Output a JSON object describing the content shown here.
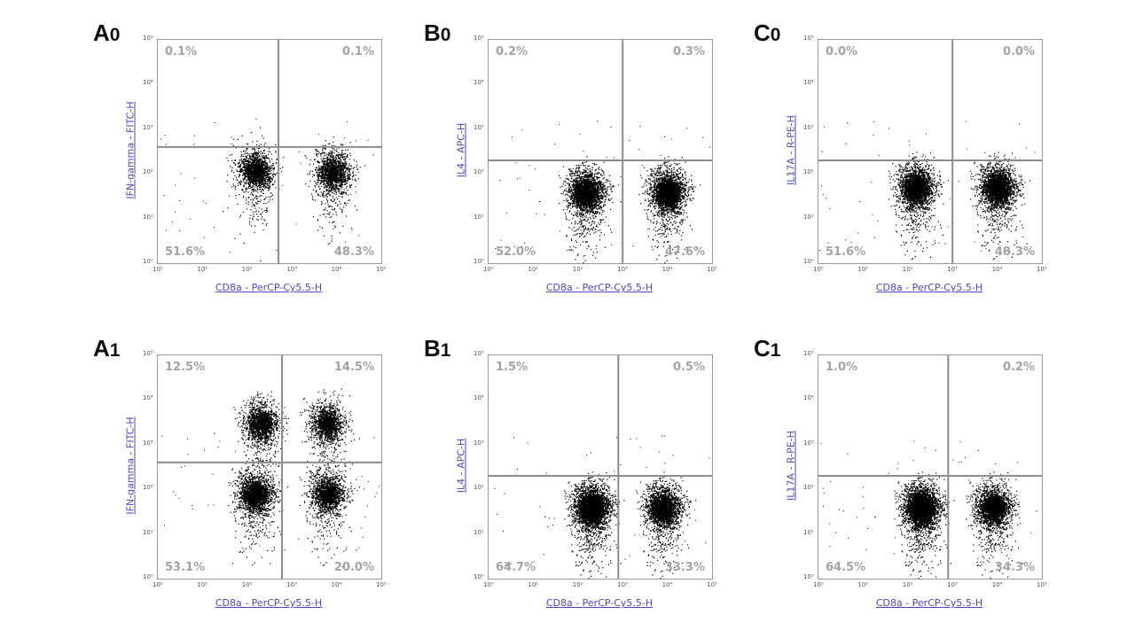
{
  "chart_data": [
    {
      "id": "A0",
      "label_main": "A",
      "label_sub": "0",
      "type": "scatter",
      "xlabel": "CD8a - PerCP-Cy5.5-H",
      "ylabel": "IFN-gamma - FITC-H",
      "quadrants": {
        "upper_left": "0.1%",
        "upper_right": "0.1%",
        "lower_left": "51.6%",
        "lower_right": "48.3%"
      },
      "xlim": [
        1,
        100000
      ],
      "ylim": [
        1,
        100000
      ],
      "scale": "log",
      "gate": {
        "x": 500,
        "y": 400
      },
      "populations": [
        {
          "x": 150,
          "y": 120,
          "n": 900
        },
        {
          "x": 8000,
          "y": 110,
          "n": 900
        }
      ]
    },
    {
      "id": "B0",
      "label_main": "B",
      "label_sub": "0",
      "type": "scatter",
      "xlabel": "CD8a - PerCP-Cy5.5-H",
      "ylabel": "IL4 - APC-H",
      "quadrants": {
        "upper_left": "0.2%",
        "upper_right": "0.3%",
        "lower_left": "52.0%",
        "lower_right": "47.6%"
      },
      "xlim": [
        1,
        100000
      ],
      "ylim": [
        1,
        100000
      ],
      "scale": "log",
      "gate": {
        "x": 1000,
        "y": 200
      },
      "populations": [
        {
          "x": 150,
          "y": 40,
          "n": 1500
        },
        {
          "x": 10000,
          "y": 40,
          "n": 1500
        }
      ]
    },
    {
      "id": "C0",
      "label_main": "C",
      "label_sub": "0",
      "type": "scatter",
      "xlabel": "CD8a - PerCP-Cy5.5-H",
      "ylabel": "IL17A - R-PE-H",
      "quadrants": {
        "upper_left": "0.0%",
        "upper_right": "0.0%",
        "lower_left": "51.6%",
        "lower_right": "48.3%"
      },
      "xlim": [
        1,
        100000
      ],
      "ylim": [
        1,
        100000
      ],
      "scale": "log",
      "gate": {
        "x": 1000,
        "y": 200
      },
      "populations": [
        {
          "x": 150,
          "y": 50,
          "n": 1500
        },
        {
          "x": 10000,
          "y": 50,
          "n": 1500
        }
      ]
    },
    {
      "id": "A1",
      "label_main": "A",
      "label_sub": "1",
      "type": "scatter",
      "xlabel": "CD8a - PerCP-Cy5.5-H",
      "ylabel": "IFN-gamma - FITC-H",
      "quadrants": {
        "upper_left": "12.5%",
        "upper_right": "14.5%",
        "lower_left": "53.1%",
        "lower_right": "20.0%"
      },
      "xlim": [
        1,
        100000
      ],
      "ylim": [
        1,
        100000
      ],
      "scale": "log",
      "gate": {
        "x": 600,
        "y": 400
      },
      "populations": [
        {
          "x": 150,
          "y": 80,
          "n": 1200
        },
        {
          "x": 6000,
          "y": 80,
          "n": 900
        },
        {
          "x": 200,
          "y": 3000,
          "n": 900
        },
        {
          "x": 6000,
          "y": 3000,
          "n": 800
        }
      ]
    },
    {
      "id": "B1",
      "label_main": "B",
      "label_sub": "1",
      "type": "scatter",
      "xlabel": "CD8a - PerCP-Cy5.5-H",
      "ylabel": "IL4 - APC-H",
      "quadrants": {
        "upper_left": "1.5%",
        "upper_right": "0.5%",
        "lower_left": "64.7%",
        "lower_right": "33.3%"
      },
      "xlim": [
        1,
        100000
      ],
      "ylim": [
        1,
        100000
      ],
      "scale": "log",
      "gate": {
        "x": 800,
        "y": 200
      },
      "populations": [
        {
          "x": 200,
          "y": 40,
          "n": 2200
        },
        {
          "x": 8000,
          "y": 40,
          "n": 1400
        }
      ]
    },
    {
      "id": "C1",
      "label_main": "C",
      "label_sub": "1",
      "type": "scatter",
      "xlabel": "CD8a - PerCP-Cy5.5-H",
      "ylabel": "IL17A - R-PE-H",
      "quadrants": {
        "upper_left": "1.0%",
        "upper_right": "0.2%",
        "lower_left": "64.5%",
        "lower_right": "34.3%"
      },
      "xlim": [
        1,
        100000
      ],
      "ylim": [
        1,
        100000
      ],
      "scale": "log",
      "gate": {
        "x": 800,
        "y": 200
      },
      "populations": [
        {
          "x": 200,
          "y": 40,
          "n": 2200
        },
        {
          "x": 8000,
          "y": 40,
          "n": 1400
        }
      ]
    }
  ],
  "tick_labels": [
    "10⁰",
    "10¹",
    "10²",
    "10³",
    "10⁴",
    "10⁵"
  ]
}
